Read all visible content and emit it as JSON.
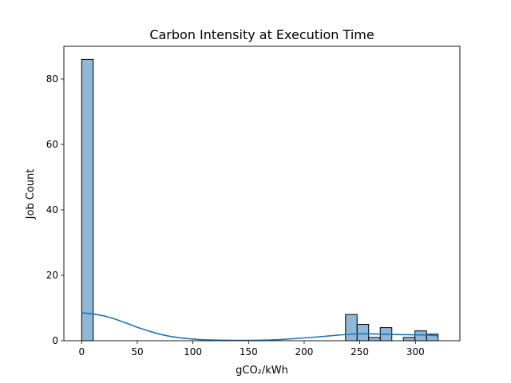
{
  "chart_data": {
    "type": "bar",
    "subtype": "histogram-with-kde",
    "title": "Carbon Intensity at Execution Time",
    "xlabel": "gCO₂/kWh",
    "ylabel": "Job Count",
    "xlim": [
      -16,
      340
    ],
    "ylim": [
      0,
      90
    ],
    "xticks": [
      0,
      50,
      100,
      150,
      200,
      250,
      300
    ],
    "yticks": [
      0,
      20,
      40,
      60,
      80
    ],
    "grid": false,
    "colors": {
      "bar_fill": "#8fb8d8",
      "bar_edge": "#000000",
      "kde_line": "#1f77b4"
    },
    "bins": [
      {
        "start": 0,
        "end": 10.4,
        "count": 86
      },
      {
        "start": 237.2,
        "end": 247.6,
        "count": 8
      },
      {
        "start": 247.6,
        "end": 258.0,
        "count": 5
      },
      {
        "start": 258.0,
        "end": 268.4,
        "count": 1
      },
      {
        "start": 268.4,
        "end": 278.8,
        "count": 4
      },
      {
        "start": 289.2,
        "end": 299.6,
        "count": 1
      },
      {
        "start": 299.6,
        "end": 310.0,
        "count": 3
      },
      {
        "start": 310.0,
        "end": 320.4,
        "count": 2
      }
    ],
    "kde": {
      "x": [
        0,
        10,
        20,
        30,
        40,
        50,
        60,
        70,
        80,
        90,
        100,
        110,
        120,
        130,
        140,
        150,
        160,
        170,
        180,
        190,
        200,
        210,
        220,
        230,
        240,
        250,
        260,
        270,
        280,
        290,
        300,
        310,
        320
      ],
      "y": [
        8.5,
        8.2,
        7.6,
        6.6,
        5.4,
        4.1,
        3.0,
        2.0,
        1.3,
        0.8,
        0.5,
        0.3,
        0.2,
        0.15,
        0.1,
        0.1,
        0.15,
        0.25,
        0.4,
        0.6,
        0.85,
        1.1,
        1.4,
        1.7,
        1.95,
        2.1,
        2.1,
        2.0,
        1.9,
        1.85,
        1.8,
        1.7,
        1.55
      ]
    }
  }
}
